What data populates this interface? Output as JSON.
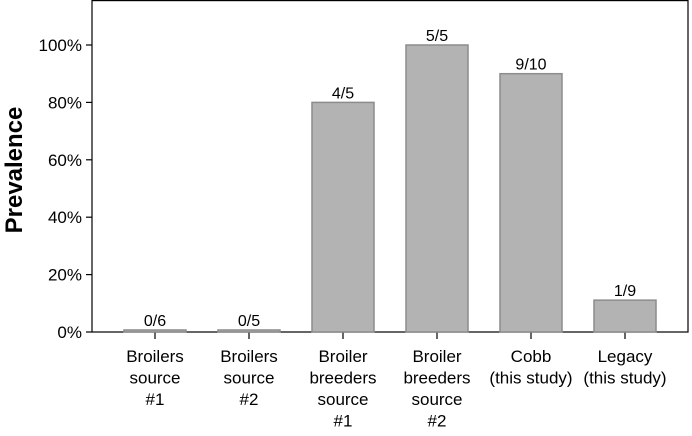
{
  "chart_data": {
    "type": "bar",
    "ylabel": "Prevalence",
    "xlabel": "",
    "ylim": [
      0,
      100
    ],
    "yticks": [
      0,
      20,
      40,
      60,
      80,
      100
    ],
    "ytick_labels": [
      "0%",
      "20%",
      "40%",
      "60%",
      "80%",
      "100%"
    ],
    "categories": [
      [
        "Broilers",
        "source",
        "#1"
      ],
      [
        "Broilers",
        "source",
        "#2"
      ],
      [
        "Broiler",
        "breeders",
        "source",
        "#1"
      ],
      [
        "Broiler",
        "breeders",
        "source",
        "#2"
      ],
      [
        "Cobb",
        "(this study)"
      ],
      [
        "Legacy",
        "(this study)"
      ]
    ],
    "values": [
      0,
      0,
      80,
      100,
      90,
      11.1
    ],
    "data_labels": [
      "0/6",
      "0/5",
      "4/5",
      "5/5",
      "9/10",
      "1/9"
    ],
    "grid": false,
    "bar_color": "#b3b3b3",
    "bar_edge_color": "#8c8c8c"
  }
}
